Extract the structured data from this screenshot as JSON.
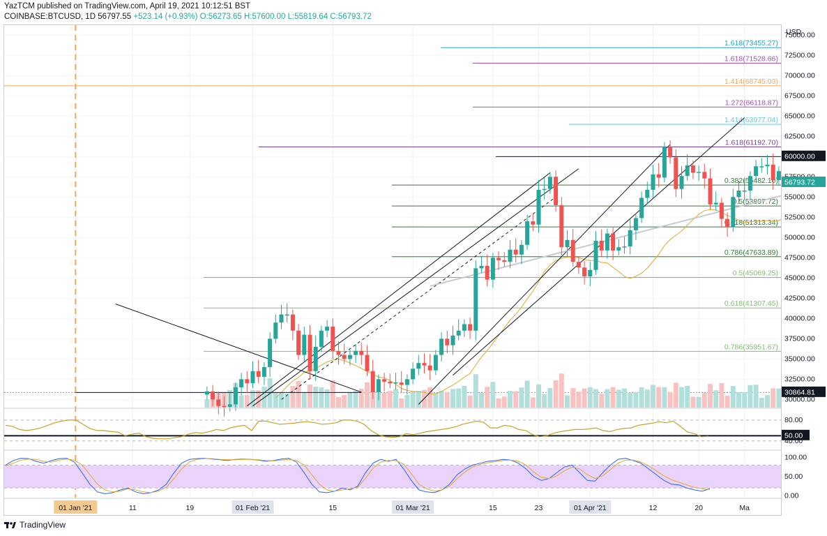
{
  "header": {
    "publish": "YazTCM published on TradingView.com, April 19, 2021 10:12:51 BST",
    "symbol": "COINBASE:BTCUSD, 1D",
    "last": "56797.55",
    "change": "+523.14 (+0.93%)",
    "ohlc": "O:56273.65 H:57600.00 L:55819.64 C:56793.72"
  },
  "brand": "TradingView",
  "colors": {
    "up": "#26a69a",
    "down": "#ef5350",
    "ma": "#e0a82e",
    "rsi": "#c9a227",
    "stoch_fill": "#e9d3fb"
  },
  "axis": {
    "currency": "USD",
    "price_ticks": [
      "75000.00",
      "72500.00",
      "70000.00",
      "67500.00",
      "65000.00",
      "62500.00",
      "60000.00",
      "57500.00",
      "55000.00",
      "52500.00",
      "50000.00",
      "47500.00",
      "45000.00",
      "42500.00",
      "40000.00",
      "37500.00",
      "35000.00",
      "32500.00",
      "30000.00"
    ],
    "price_tick_values": [
      75000,
      72500,
      70000,
      67500,
      65000,
      62500,
      60000,
      57500,
      55000,
      52500,
      50000,
      47500,
      45000,
      42500,
      40000,
      37500,
      35000,
      32500,
      30000
    ],
    "current_price_label": "56793.72",
    "level_60000_label": "60000.00",
    "level_30864_label": "30864.81",
    "rsi_ticks": [
      "80.00",
      "50.00",
      "40.00"
    ],
    "stoch_ticks": [
      "100.00",
      "50.00",
      "0.00"
    ],
    "time_labels": [
      "01 Jan '21",
      "11",
      "19",
      "01 Feb '21",
      "15",
      "01 Mar '21",
      "15",
      "23",
      "01 Apr '21",
      "12",
      "20",
      "Ma"
    ]
  },
  "chart_data": {
    "type": "candlestick",
    "price_range": [
      29000,
      75800
    ],
    "start_date": "2020-12-28",
    "candles": [
      [
        27,
        31000
      ],
      [
        28,
        30000
      ],
      [
        29,
        29200
      ],
      [
        30,
        29100
      ],
      [
        31,
        29400
      ],
      [
        32,
        31500
      ],
      [
        33,
        32500
      ],
      [
        34,
        32000
      ],
      [
        35,
        33500
      ],
      [
        36,
        32800
      ],
      [
        37,
        34000
      ],
      [
        38,
        37500
      ],
      [
        39,
        39500
      ],
      [
        40,
        40500
      ],
      [
        41,
        40500
      ],
      [
        42,
        38500
      ],
      [
        43,
        35500
      ],
      [
        44,
        38000
      ],
      [
        45,
        33500
      ],
      [
        46,
        36500
      ],
      [
        47,
        38500
      ],
      [
        48,
        39000
      ],
      [
        49,
        36000
      ],
      [
        50,
        35500
      ],
      [
        51,
        35000
      ],
      [
        52,
        35500
      ],
      [
        53,
        36000
      ],
      [
        54,
        35500
      ],
      [
        55,
        33500
      ],
      [
        56,
        30900
      ],
      [
        57,
        32500
      ],
      [
        58,
        32200
      ],
      [
        59,
        32000
      ],
      [
        60,
        32100
      ],
      [
        61,
        31800
      ],
      [
        62,
        32500
      ],
      [
        63,
        33800
      ],
      [
        64,
        34500
      ],
      [
        65,
        34200
      ],
      [
        66,
        33600
      ],
      [
        67,
        35500
      ],
      [
        68,
        37500
      ],
      [
        69,
        36700
      ],
      [
        70,
        37900
      ],
      [
        71,
        38500
      ],
      [
        72,
        39300
      ],
      [
        73,
        38500
      ],
      [
        74,
        46200
      ],
      [
        75,
        46500
      ],
      [
        76,
        44800
      ],
      [
        77,
        47500
      ],
      [
        78,
        47200
      ],
      [
        79,
        47000
      ],
      [
        80,
        48500
      ],
      [
        81,
        47900
      ],
      [
        82,
        49100
      ],
      [
        83,
        52000
      ],
      [
        84,
        51600
      ],
      [
        85,
        55900
      ],
      [
        86,
        56000
      ],
      [
        87,
        57500
      ],
      [
        88,
        54000
      ],
      [
        89,
        48800
      ],
      [
        90,
        49700
      ],
      [
        91,
        47000
      ],
      [
        92,
        46300
      ],
      [
        93,
        45200
      ],
      [
        94,
        46000
      ],
      [
        95,
        49600
      ],
      [
        96,
        48400
      ],
      [
        97,
        50500
      ],
      [
        98,
        48400
      ],
      [
        99,
        48800
      ],
      [
        100,
        48900
      ],
      [
        101,
        50900
      ],
      [
        102,
        52400
      ],
      [
        103,
        54900
      ],
      [
        104,
        55900
      ],
      [
        105,
        57800
      ],
      [
        106,
        57400
      ],
      [
        107,
        61200
      ],
      [
        108,
        59900
      ],
      [
        109,
        56000
      ],
      [
        110,
        57600
      ],
      [
        111,
        58900
      ],
      [
        112,
        58000
      ],
      [
        113,
        58100
      ],
      [
        114,
        57300
      ],
      [
        115,
        54100
      ],
      [
        116,
        54300
      ],
      [
        117,
        52300
      ],
      [
        118,
        51300
      ],
      [
        119,
        55000
      ],
      [
        120,
        55800
      ],
      [
        121,
        55800
      ],
      [
        122,
        57600
      ],
      [
        123,
        58800
      ],
      [
        124,
        58800
      ],
      [
        125,
        59000
      ],
      [
        126,
        57100
      ],
      [
        127,
        58200
      ],
      [
        128,
        59000
      ],
      [
        129,
        58000
      ],
      [
        130,
        55900
      ],
      [
        131,
        57700
      ],
      [
        132,
        58100
      ],
      [
        133,
        59000
      ],
      [
        134,
        59800
      ],
      [
        135,
        59800
      ],
      [
        136,
        63500
      ],
      [
        137,
        63400
      ],
      [
        138,
        62900
      ],
      [
        139,
        61500
      ],
      [
        140,
        60100
      ],
      [
        141,
        56200
      ],
      [
        142,
        56800
      ]
    ],
    "fib_levels": [
      {
        "label": "1.618(73455.27)",
        "value": 73455.27
      },
      {
        "label": "1.618(71528.66)",
        "value": 71528.66
      },
      {
        "label": "1.414(68745.03)",
        "value": 68745.03
      },
      {
        "label": "1.272(66118.87)",
        "value": 66118.87
      },
      {
        "label": "1.414(63977.04)",
        "value": 63977.04
      },
      {
        "label": "1.618(61192.70)",
        "value": 61192.7
      },
      {
        "label": "0.382(56482.10)",
        "value": 56482.1
      },
      {
        "label": "0.5(53897.72)",
        "value": 53897.72
      },
      {
        "label": "0.618(51313.34)",
        "value": 51313.34
      },
      {
        "label": "0.786(47633.89)",
        "value": 47633.89
      },
      {
        "label": "0.5(45069.25)",
        "value": 45069.25
      },
      {
        "label": "0.618(41307.45)",
        "value": 41307.45
      },
      {
        "label": "0.786(35951.67)",
        "value": 35951.67
      }
    ],
    "support_resistance": [
      60000,
      30864.81
    ],
    "rsi_range": [
      25,
      100
    ],
    "rsi_levels": [
      80,
      50,
      40
    ],
    "rsi": [
      70,
      68,
      62,
      60,
      62,
      65,
      70,
      75,
      78,
      80,
      80,
      72,
      64,
      60,
      60,
      58,
      57,
      50,
      53,
      55,
      48,
      45,
      44,
      44,
      46,
      48,
      53,
      56,
      55,
      58,
      62,
      60,
      65,
      68,
      70,
      60,
      78,
      78,
      75,
      72,
      73,
      74,
      76,
      77,
      75,
      72,
      73,
      75,
      80,
      80,
      78,
      72,
      60,
      52,
      48,
      47,
      48,
      54,
      52,
      55,
      58,
      60,
      62,
      64,
      67,
      72,
      75,
      78,
      76,
      65,
      65,
      70,
      68,
      62,
      60,
      52,
      48,
      50,
      55,
      58,
      60,
      62,
      62,
      63,
      65,
      60,
      58,
      62,
      64,
      65,
      70,
      72,
      74,
      77,
      75,
      78,
      68,
      57,
      54,
      48,
      49
    ],
    "stoch_range": [
      -5,
      110
    ],
    "stoch_levels": [
      80,
      20
    ],
    "stoch_k": [
      80,
      92,
      98,
      97,
      90,
      85,
      92,
      97,
      98,
      88,
      60,
      30,
      10,
      5,
      8,
      15,
      20,
      10,
      5,
      8,
      15,
      30,
      60,
      85,
      95,
      97,
      98,
      96,
      94,
      92,
      95,
      96,
      95,
      93,
      90,
      92,
      96,
      98,
      88,
      60,
      30,
      10,
      8,
      12,
      20,
      15,
      25,
      60,
      85,
      95,
      90,
      95,
      70,
      40,
      15,
      10,
      8,
      15,
      30,
      55,
      70,
      80,
      85,
      90,
      92,
      95,
      93,
      85,
      70,
      50,
      40,
      45,
      60,
      75,
      80,
      60,
      40,
      38,
      60,
      80,
      95,
      98,
      92,
      85,
      70,
      55,
      40,
      30,
      28,
      20,
      15,
      12,
      18
    ],
    "stoch_d": [
      78,
      85,
      93,
      96,
      95,
      90,
      88,
      93,
      96,
      93,
      80,
      55,
      30,
      15,
      10,
      12,
      18,
      15,
      10,
      8,
      12,
      22,
      45,
      70,
      88,
      95,
      97,
      97,
      95,
      94,
      94,
      95,
      95,
      94,
      92,
      91,
      93,
      95,
      92,
      80,
      55,
      30,
      15,
      12,
      15,
      18,
      22,
      45,
      72,
      88,
      92,
      92,
      82,
      58,
      30,
      18,
      12,
      15,
      25,
      45,
      62,
      75,
      82,
      86,
      89,
      92,
      93,
      90,
      80,
      62,
      48,
      45,
      52,
      65,
      75,
      70,
      55,
      45,
      52,
      68,
      85,
      93,
      93,
      88,
      78,
      65,
      52,
      42,
      35,
      28,
      22,
      18,
      16
    ]
  }
}
